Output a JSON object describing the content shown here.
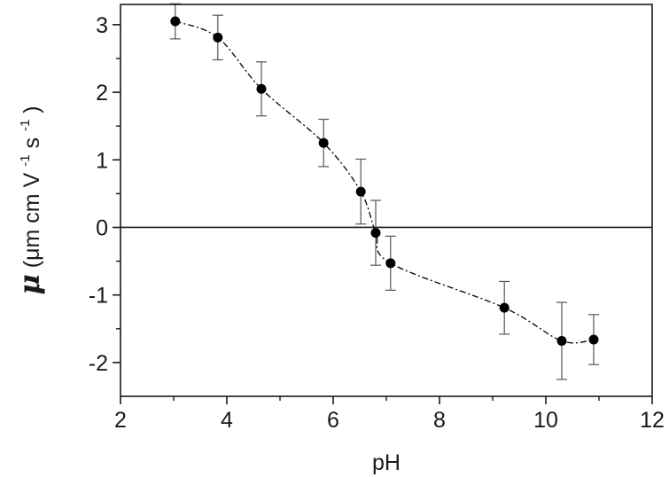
{
  "chart_data": {
    "type": "scatter",
    "xlabel": "pH",
    "ylabel": {
      "symbol": "μ",
      "units_open": " (μm cm V",
      "exp1": "-1",
      "units_mid": " s",
      "exp2": "-1",
      "units_close": ")"
    },
    "xlim": [
      2,
      12
    ],
    "ylim": [
      -2.5,
      3.3
    ],
    "xticks": [
      2,
      4,
      6,
      8,
      10,
      12
    ],
    "yticks": [
      -2,
      -1,
      0,
      1,
      2,
      3
    ],
    "grid": false,
    "legend": "none",
    "zero_line": true,
    "trend_line": "dash-dot",
    "series": [
      {
        "x": [
          3.03,
          3.83,
          4.65,
          5.82,
          6.52,
          6.8,
          7.08,
          9.22,
          10.3,
          10.9
        ],
        "y": [
          3.05,
          2.81,
          2.05,
          1.25,
          0.53,
          -0.08,
          -0.53,
          -1.19,
          -1.68,
          -1.66
        ],
        "err": [
          0.26,
          0.33,
          0.4,
          0.35,
          0.48,
          0.48,
          0.4,
          0.39,
          0.57,
          0.37
        ]
      }
    ],
    "colors": {
      "marker": "#000000",
      "axis": "#1a1a1a",
      "error_bar": "#555555"
    }
  }
}
